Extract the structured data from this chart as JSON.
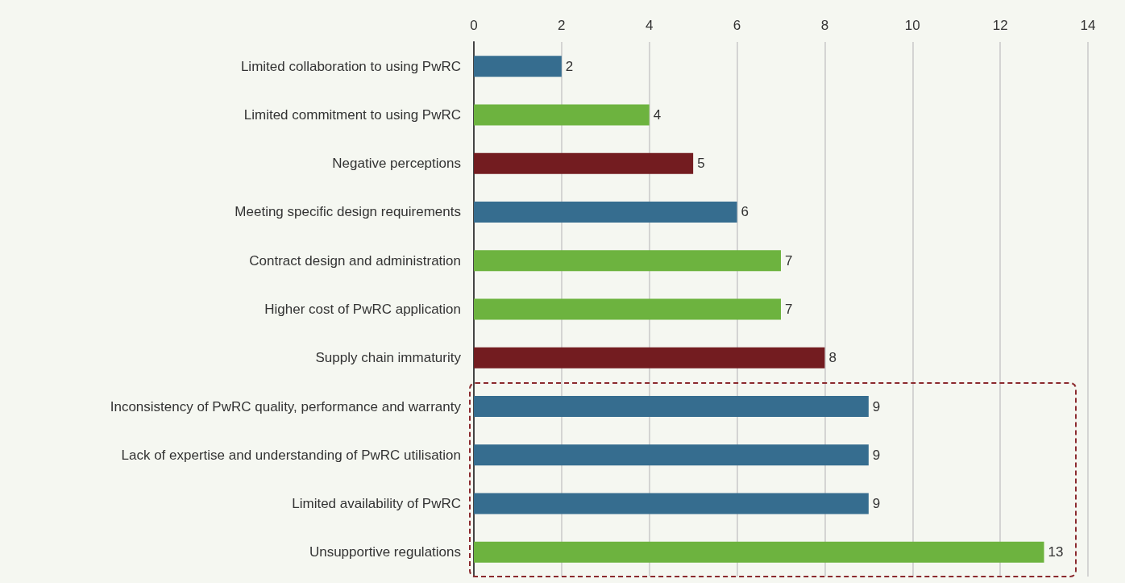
{
  "chart_data": {
    "type": "bar",
    "orientation": "horizontal",
    "categories": [
      "Limited collaboration to using PwRC",
      "Limited commitment to using PwRC",
      "Negative perceptions",
      "Meeting specific design requirements",
      "Contract design and administration",
      "Higher cost of PwRC application",
      "Supply chain immaturity",
      "Inconsistency of PwRC quality, performance and warranty",
      "Lack of expertise and understanding of PwRC utilisation",
      "Limited availability of PwRC",
      "Unsupportive regulations"
    ],
    "values": [
      2,
      4,
      5,
      6,
      7,
      7,
      8,
      9,
      9,
      9,
      13
    ],
    "colors": [
      "#366d8f",
      "#6db33f",
      "#731c20",
      "#366d8f",
      "#6db33f",
      "#6db33f",
      "#731c20",
      "#366d8f",
      "#366d8f",
      "#366d8f",
      "#6db33f"
    ],
    "xlim": [
      0,
      14
    ],
    "xticks": [
      0,
      2,
      4,
      6,
      8,
      10,
      12,
      14
    ],
    "grid": "x",
    "data_labels": true
  }
}
